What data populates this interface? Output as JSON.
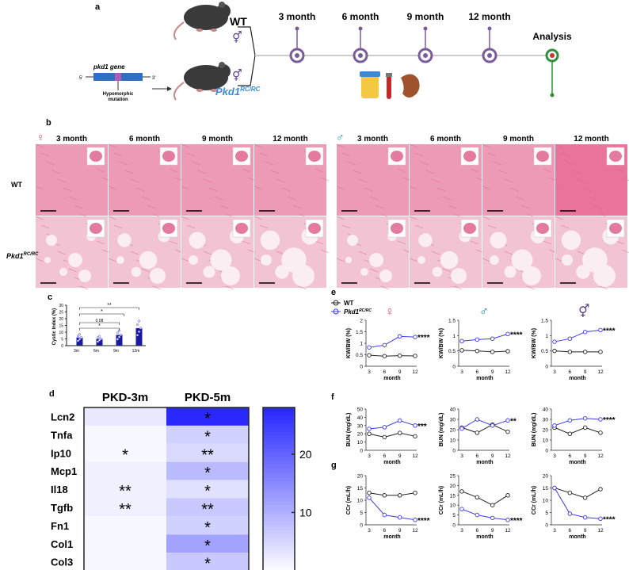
{
  "panel_a": {
    "letter": "a",
    "wt_label": "WT",
    "pkd_label_main": "Pkd1",
    "pkd_label_sup": "RC/RC",
    "gene_title": "pkd1 gene",
    "gene_5": "5'",
    "gene_3": "3'",
    "mutation_label_1": "Hypomorphic",
    "mutation_label_2": "mutation",
    "timepoints": [
      "3 month",
      "6 month",
      "9 month",
      "12 month"
    ],
    "analysis": "Analysis"
  },
  "panel_b": {
    "letter": "b",
    "months": [
      "3 month",
      "6 month",
      "9 month",
      "12 month"
    ],
    "row_wt": "WT",
    "row_pkd_main": "Pkd1",
    "row_pkd_sup": "RC/RC",
    "tissue_color": "#e8a3b8"
  },
  "panel_c": {
    "letter": "c",
    "chart_data": {
      "type": "bar",
      "categories": [
        "3m",
        "6m",
        "9m",
        "12m"
      ],
      "series": [
        {
          "values": [
            0.1,
            0.1,
            0.1,
            0.1
          ]
        },
        {
          "values": [
            6,
            5,
            8,
            13
          ]
        }
      ],
      "ylabel": "Cystic Index (%)",
      "yticks": [
        0,
        5,
        10,
        15,
        20,
        25,
        30
      ],
      "ylim": [
        0,
        30
      ],
      "annotations": [
        "**",
        "*",
        "0.08",
        "*"
      ]
    }
  },
  "panel_d": {
    "letter": "d",
    "chart_data": {
      "type": "heatmap",
      "columns": [
        "PKD-3m",
        "PKD-5m"
      ],
      "rows": [
        "Lcn2",
        "Tnfa",
        "Ip10",
        "Mcp1",
        "Il18",
        "Tgfb",
        "Fn1",
        "Col1",
        "Col3"
      ],
      "values": [
        [
          3,
          28
        ],
        [
          1,
          6
        ],
        [
          1,
          5
        ],
        [
          2,
          9
        ],
        [
          2,
          4
        ],
        [
          2,
          7
        ],
        [
          1,
          6
        ],
        [
          1,
          12
        ],
        [
          1,
          7
        ]
      ],
      "stars": [
        [
          "",
          "*"
        ],
        [
          "",
          "*"
        ],
        [
          "*",
          "**"
        ],
        [
          "",
          "*"
        ],
        [
          "**",
          "*"
        ],
        [
          "**",
          "**"
        ],
        [
          "",
          "*"
        ],
        [
          "",
          "*"
        ],
        [
          "",
          "*"
        ]
      ],
      "colorbar_ticks": [
        10,
        20
      ],
      "color_range": [
        0,
        28
      ]
    }
  },
  "panel_e": {
    "letter": "e",
    "legend_wt": "WT",
    "legend_pkd_main": "Pkd1",
    "legend_pkd_sup": "RC/RC"
  },
  "panel_f": {
    "letter": "f"
  },
  "panel_g": {
    "letter": "g"
  },
  "chart_data": [
    {
      "id": "e-female",
      "type": "line",
      "x": [
        3,
        6,
        9,
        12
      ],
      "xlabel": "month",
      "ylabel": "KW/BW (%)",
      "ylim": [
        0,
        2
      ],
      "yticks": [
        0,
        0.5,
        1.0,
        1.5,
        2.0
      ],
      "series": [
        {
          "values": [
            0.48,
            0.44,
            0.46,
            0.45
          ]
        },
        {
          "values": [
            0.82,
            0.92,
            1.3,
            1.27
          ]
        }
      ],
      "sig": "****"
    },
    {
      "id": "e-male",
      "type": "line",
      "x": [
        3,
        6,
        9,
        12
      ],
      "xlabel": "month",
      "ylabel": "KW/BW (%)",
      "ylim": [
        0,
        1.5
      ],
      "yticks": [
        0,
        0.5,
        1.0,
        1.5
      ],
      "series": [
        {
          "values": [
            0.52,
            0.5,
            0.47,
            0.49
          ]
        },
        {
          "values": [
            0.82,
            0.87,
            0.9,
            1.05
          ]
        }
      ],
      "sig": "****"
    },
    {
      "id": "e-combined",
      "type": "line",
      "x": [
        3,
        6,
        9,
        12
      ],
      "xlabel": "month",
      "ylabel": "KW/BW (%)",
      "ylim": [
        0,
        1.5
      ],
      "yticks": [
        0,
        0.5,
        1.0,
        1.5
      ],
      "series": [
        {
          "values": [
            0.5,
            0.47,
            0.47,
            0.47
          ]
        },
        {
          "values": [
            0.8,
            0.9,
            1.12,
            1.18
          ]
        }
      ],
      "sig": "****"
    },
    {
      "id": "f-female",
      "type": "line",
      "x": [
        3,
        6,
        9,
        12
      ],
      "xlabel": "month",
      "ylabel": "BUN (mg/dL)",
      "ylim": [
        0,
        50
      ],
      "yticks": [
        0,
        10,
        20,
        30,
        40,
        50
      ],
      "series": [
        {
          "values": [
            20,
            16,
            21,
            17
          ]
        },
        {
          "values": [
            26,
            28,
            36,
            30
          ]
        }
      ],
      "sig": "***"
    },
    {
      "id": "f-male",
      "type": "line",
      "x": [
        3,
        6,
        9,
        12
      ],
      "xlabel": "month",
      "ylabel": "BUN (mg/dL)",
      "ylim": [
        0,
        40
      ],
      "yticks": [
        0,
        10,
        20,
        30,
        40
      ],
      "series": [
        {
          "values": [
            22,
            17,
            25,
            18
          ]
        },
        {
          "values": [
            21,
            30,
            24,
            29
          ]
        }
      ],
      "sig": "**"
    },
    {
      "id": "f-combined",
      "type": "line",
      "x": [
        3,
        6,
        9,
        12
      ],
      "xlabel": "month",
      "ylabel": "BUN (mg/dL)",
      "ylim": [
        0,
        40
      ],
      "yticks": [
        0,
        10,
        20,
        30,
        40
      ],
      "series": [
        {
          "values": [
            22,
            16,
            22,
            17
          ]
        },
        {
          "values": [
            24,
            29,
            31,
            30
          ]
        }
      ],
      "sig": "****"
    },
    {
      "id": "g-female",
      "type": "line",
      "x": [
        3,
        6,
        9,
        12
      ],
      "xlabel": "month",
      "ylabel": "CCr (mL/h)",
      "ylim": [
        0,
        20
      ],
      "yticks": [
        0,
        5,
        10,
        15,
        20
      ],
      "series": [
        {
          "values": [
            13,
            12,
            12,
            13
          ]
        },
        {
          "values": [
            11,
            4,
            3,
            2
          ]
        }
      ],
      "sig": "****"
    },
    {
      "id": "g-male",
      "type": "line",
      "x": [
        3,
        6,
        9,
        12
      ],
      "xlabel": "month",
      "ylabel": "CCr (mL/h)",
      "ylim": [
        0,
        25
      ],
      "yticks": [
        0,
        5,
        10,
        15,
        20,
        25
      ],
      "series": [
        {
          "values": [
            17,
            14,
            10,
            15
          ]
        },
        {
          "values": [
            8,
            5,
            3.5,
            2.5
          ]
        }
      ],
      "sig": "****"
    },
    {
      "id": "g-combined",
      "type": "line",
      "x": [
        3,
        6,
        9,
        12
      ],
      "xlabel": "month",
      "ylabel": "CCr (mL/h)",
      "ylim": [
        0,
        20
      ],
      "yticks": [
        0,
        5,
        10,
        15,
        20
      ],
      "series": [
        {
          "values": [
            15,
            13,
            11,
            14.5
          ]
        },
        {
          "values": [
            15,
            4.5,
            3,
            2.5
          ]
        }
      ],
      "sig": "****"
    }
  ],
  "colors": {
    "wt": "#222222",
    "pkd": "#3b3be8",
    "bar": "#1a1aa0",
    "female": "#e84a5f",
    "male": "#1a8a9a",
    "combined": "#5b3f8f",
    "timeline": "#7a5c9a"
  }
}
